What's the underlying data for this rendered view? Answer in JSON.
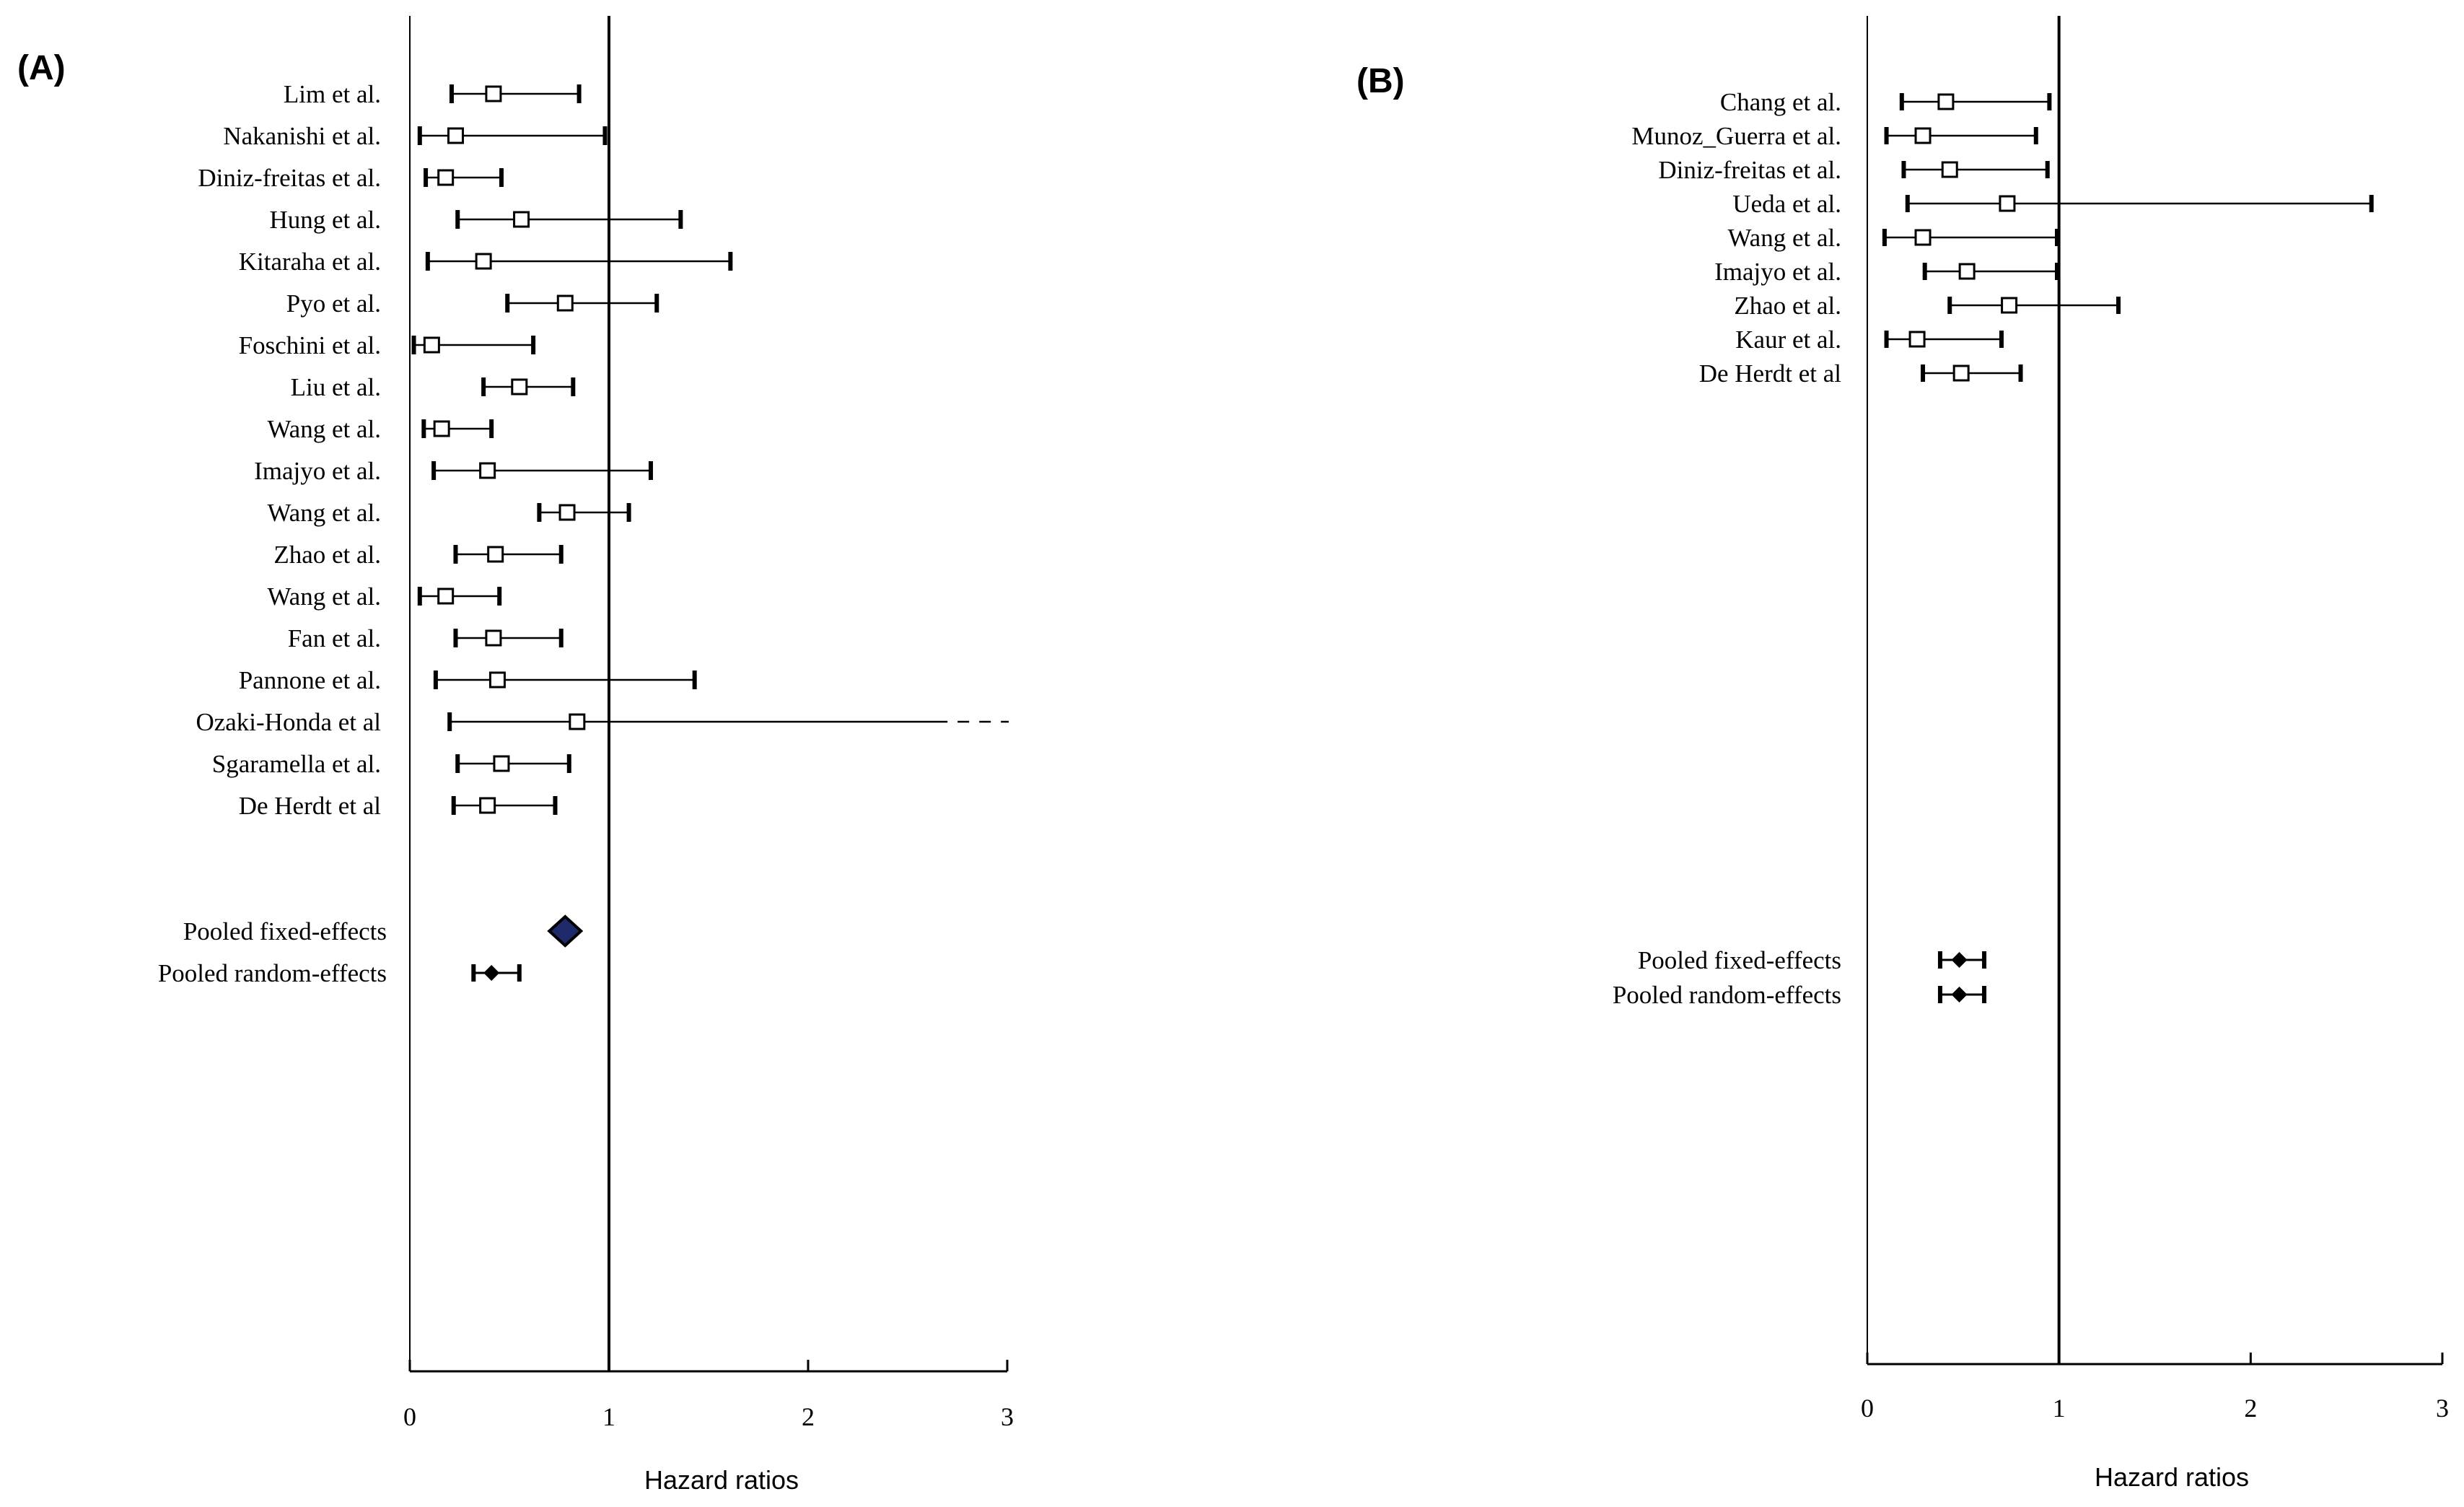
{
  "chart_data": [
    {
      "type": "forest",
      "panel_label": "(A)",
      "xlabel": "Hazard ratios",
      "xlim": [
        0,
        3
      ],
      "xticks": [
        "0",
        "1",
        "2",
        "3"
      ],
      "reference_line": 1,
      "studies": [
        {
          "name": "Lim et al.",
          "hr": 0.42,
          "lower": 0.21,
          "upper": 0.85
        },
        {
          "name": "Nakanishi et al.",
          "hr": 0.23,
          "lower": 0.05,
          "upper": 0.98
        },
        {
          "name": "Diniz-freitas et al.",
          "hr": 0.18,
          "lower": 0.08,
          "upper": 0.46
        },
        {
          "name": "Hung et al.",
          "hr": 0.56,
          "lower": 0.24,
          "upper": 1.36
        },
        {
          "name": "Kitaraha et al.",
          "hr": 0.37,
          "lower": 0.09,
          "upper": 1.61
        },
        {
          "name": "Pyo et al.",
          "hr": 0.78,
          "lower": 0.49,
          "upper": 1.24
        },
        {
          "name": "Foschini et al.",
          "hr": 0.11,
          "lower": 0.02,
          "upper": 0.62
        },
        {
          "name": "Liu et al.",
          "hr": 0.55,
          "lower": 0.37,
          "upper": 0.82
        },
        {
          "name": "Wang et al.",
          "hr": 0.16,
          "lower": 0.07,
          "upper": 0.41
        },
        {
          "name": "Imajyo et al.",
          "hr": 0.39,
          "lower": 0.12,
          "upper": 1.21
        },
        {
          "name": "Wang et al.",
          "hr": 0.79,
          "lower": 0.65,
          "upper": 1.1
        },
        {
          "name": "Zhao et al.",
          "hr": 0.43,
          "lower": 0.23,
          "upper": 0.76
        },
        {
          "name": "Wang et al.",
          "hr": 0.18,
          "lower": 0.05,
          "upper": 0.45
        },
        {
          "name": "Fan et al.",
          "hr": 0.42,
          "lower": 0.23,
          "upper": 0.76
        },
        {
          "name": "Pannone et al.",
          "hr": 0.44,
          "lower": 0.13,
          "upper": 1.43
        },
        {
          "name": "Ozaki-Honda et al",
          "hr": 0.84,
          "lower": 0.2,
          "upper": 2.7,
          "upper_extends_beyond_axis": true
        },
        {
          "name": "Sgaramella et al.",
          "hr": 0.46,
          "lower": 0.24,
          "upper": 0.8
        },
        {
          "name": "De Herdt et al",
          "hr": 0.39,
          "lower": 0.22,
          "upper": 0.73
        }
      ],
      "pooled": [
        {
          "name": "Pooled fixed-effects",
          "hr": 0.78,
          "lower": 0.75,
          "upper": 0.82,
          "marker": "large-blue-diamond"
        },
        {
          "name": "Pooled random-effects",
          "hr": 0.41,
          "lower": 0.32,
          "upper": 0.55,
          "marker": "small-diamond"
        }
      ]
    },
    {
      "type": "forest",
      "panel_label": "(B)",
      "xlabel": "Hazard ratios",
      "xlim": [
        0,
        3
      ],
      "xticks": [
        "0",
        "1",
        "2",
        "3"
      ],
      "reference_line": 1,
      "studies": [
        {
          "name": "Chang et al.",
          "hr": 0.41,
          "lower": 0.18,
          "upper": 0.95
        },
        {
          "name": "Munoz_Guerra et al.",
          "hr": 0.29,
          "lower": 0.1,
          "upper": 0.88
        },
        {
          "name": "Diniz-freitas et al.",
          "hr": 0.43,
          "lower": 0.19,
          "upper": 0.94
        },
        {
          "name": "Ueda et al.",
          "hr": 0.73,
          "lower": 0.21,
          "upper": 2.63
        },
        {
          "name": "Wang et al.",
          "hr": 0.29,
          "lower": 0.09,
          "upper": 0.99
        },
        {
          "name": "Imajyo et al.",
          "hr": 0.52,
          "lower": 0.3,
          "upper": 0.99
        },
        {
          "name": "Zhao et al.",
          "hr": 0.74,
          "lower": 0.43,
          "upper": 1.31
        },
        {
          "name": "Kaur et al.",
          "hr": 0.26,
          "lower": 0.1,
          "upper": 0.7
        },
        {
          "name": "De Herdt et al",
          "hr": 0.49,
          "lower": 0.29,
          "upper": 0.8
        }
      ],
      "pooled": [
        {
          "name": "Pooled fixed-effects",
          "hr": 0.48,
          "lower": 0.38,
          "upper": 0.61,
          "marker": "small-diamond"
        },
        {
          "name": "Pooled random-effects",
          "hr": 0.48,
          "lower": 0.38,
          "upper": 0.61,
          "marker": "small-diamond"
        }
      ]
    }
  ]
}
